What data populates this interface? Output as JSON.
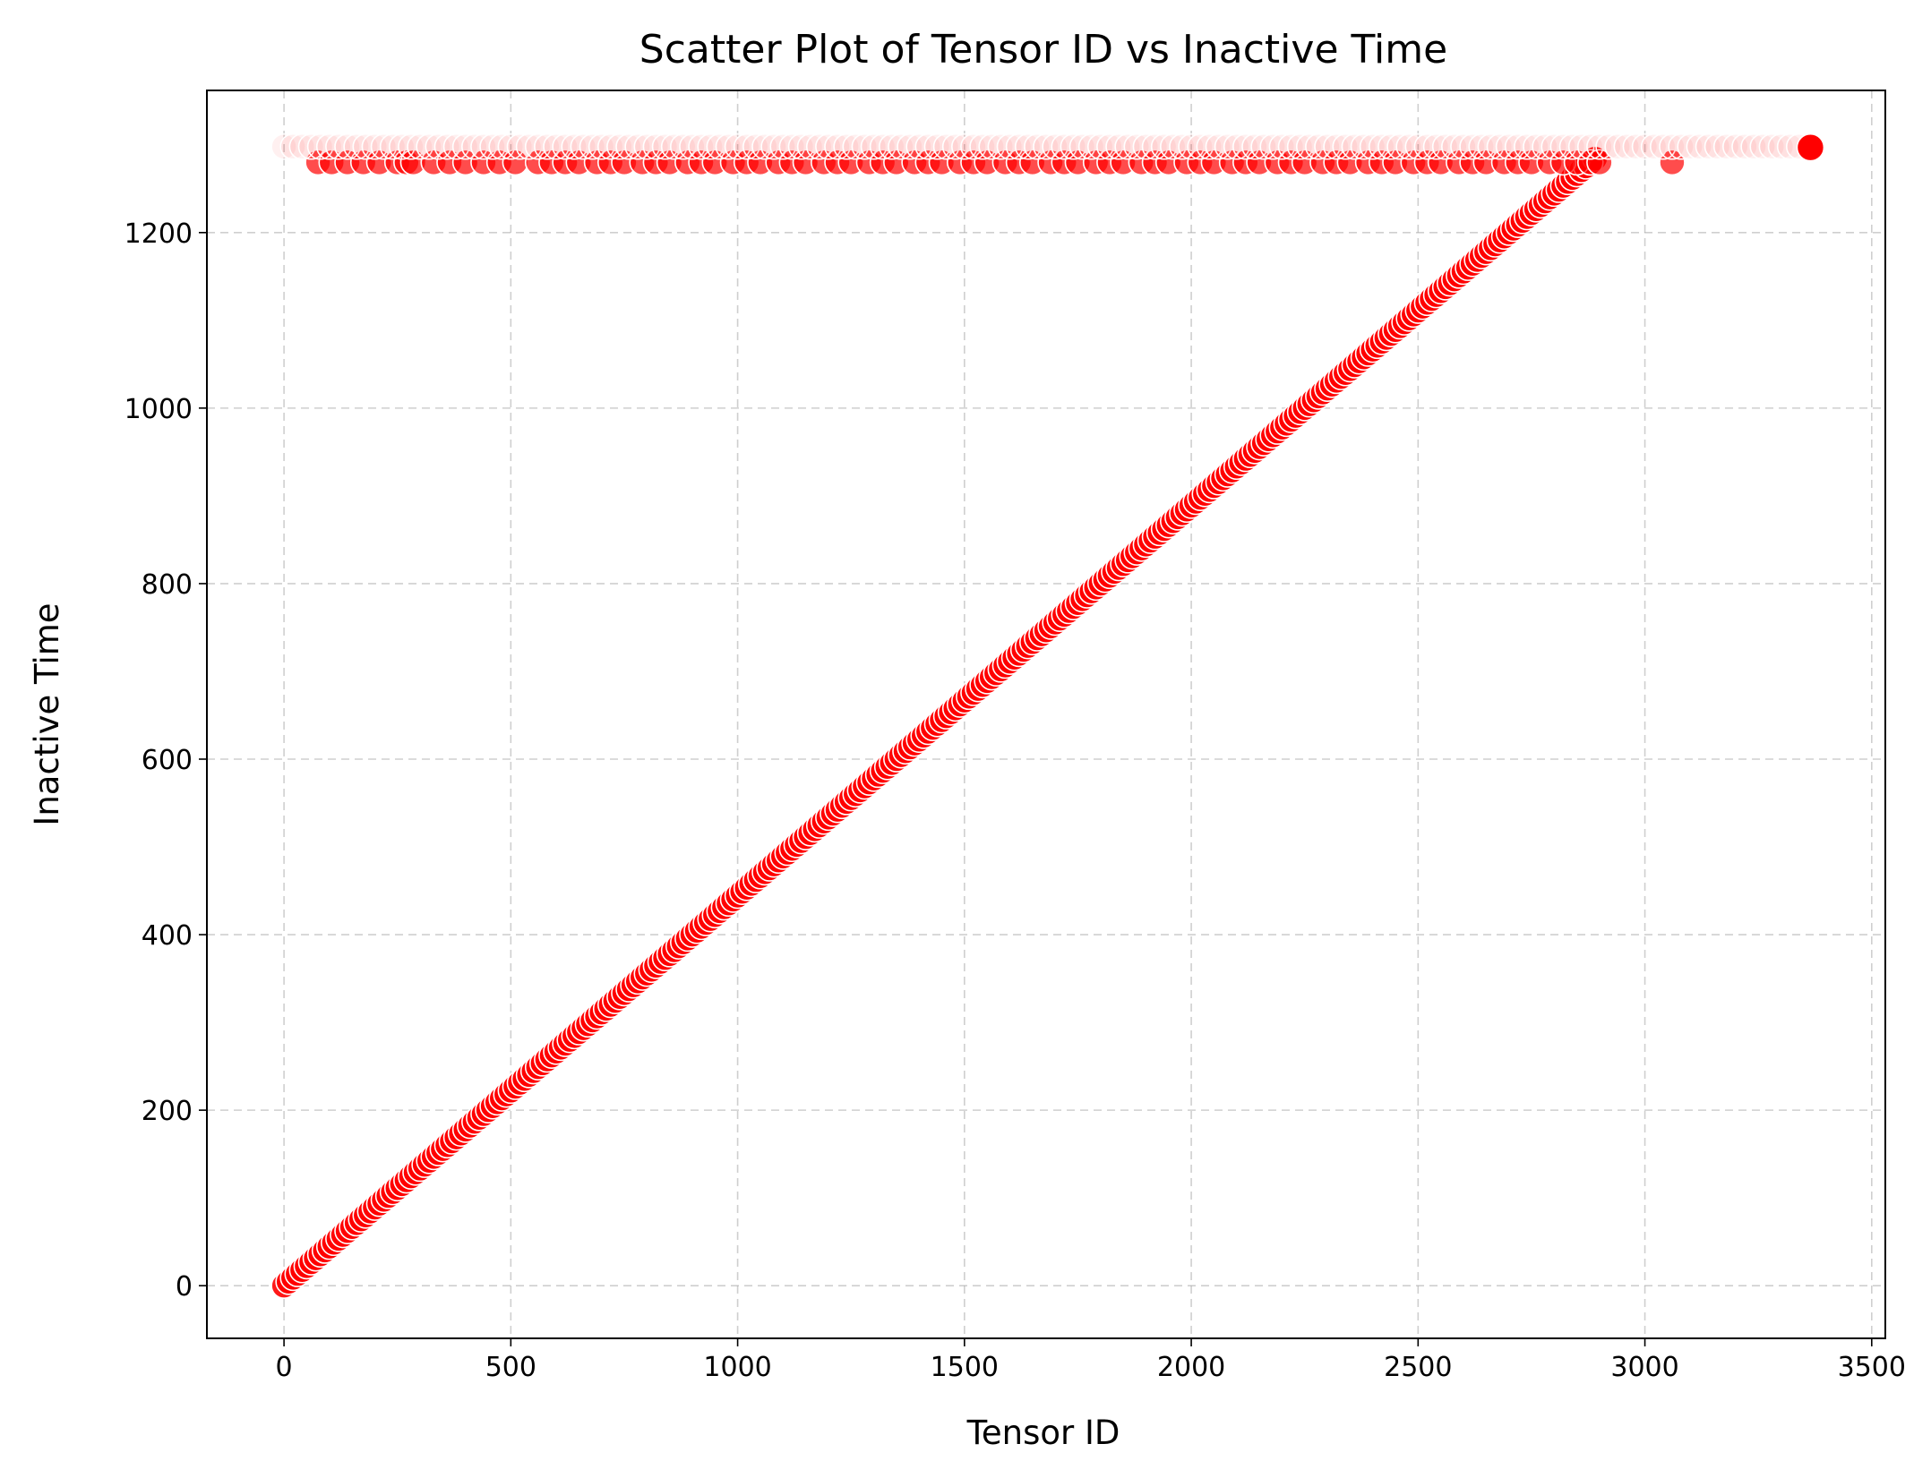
{
  "chart_data": {
    "type": "scatter",
    "title": "Scatter Plot of Tensor ID vs Inactive Time",
    "xlabel": "Tensor ID",
    "ylabel": "Inactive Time",
    "xlim": [
      -170,
      3530
    ],
    "ylim": [
      -60,
      1362
    ],
    "x_ticks": [
      0,
      500,
      1000,
      1500,
      2000,
      2500,
      3000,
      3500
    ],
    "y_ticks": [
      0,
      200,
      400,
      600,
      800,
      1000,
      1200
    ],
    "grid": true,
    "legend": "none",
    "marker_color": "#ff0000",
    "marker_edge_color": "#ffffff",
    "series": [
      {
        "description_shape": "diagonal",
        "x_start": 0,
        "x_end": 2890,
        "x_step": 10,
        "y_slope": 0.4444,
        "y_intercept": 0,
        "alpha": 0.9
      },
      {
        "description_shape": "upper-band",
        "x": [
          75,
          105,
          140,
          175,
          210,
          250,
          270,
          285,
          330,
          365,
          400,
          440,
          475,
          510,
          560,
          590,
          620,
          650,
          690,
          720,
          750,
          790,
          820,
          850,
          890,
          920,
          950,
          990,
          1020,
          1050,
          1090,
          1120,
          1150,
          1190,
          1220,
          1250,
          1290,
          1320,
          1350,
          1390,
          1420,
          1450,
          1490,
          1520,
          1550,
          1590,
          1620,
          1650,
          1690,
          1720,
          1750,
          1790,
          1820,
          1850,
          1890,
          1920,
          1950,
          1990,
          2020,
          2050,
          2090,
          2120,
          2150,
          2190,
          2220,
          2250,
          2290,
          2320,
          2350,
          2390,
          2420,
          2450,
          2490,
          2520,
          2550,
          2590,
          2620,
          2650,
          2690,
          2720,
          2750,
          2790,
          2820,
          2850,
          2880,
          2900,
          3060
        ],
        "y": 1280,
        "alpha": 0.7
      },
      {
        "description_shape": "faint-top-band",
        "x_start": 0,
        "x_end": 3340,
        "x_step": 20,
        "y": 1298,
        "alpha": 0.06
      },
      {
        "description_shape": "highlight",
        "x": [
          3365
        ],
        "y": [
          1297
        ],
        "alpha": 1.0
      }
    ]
  }
}
